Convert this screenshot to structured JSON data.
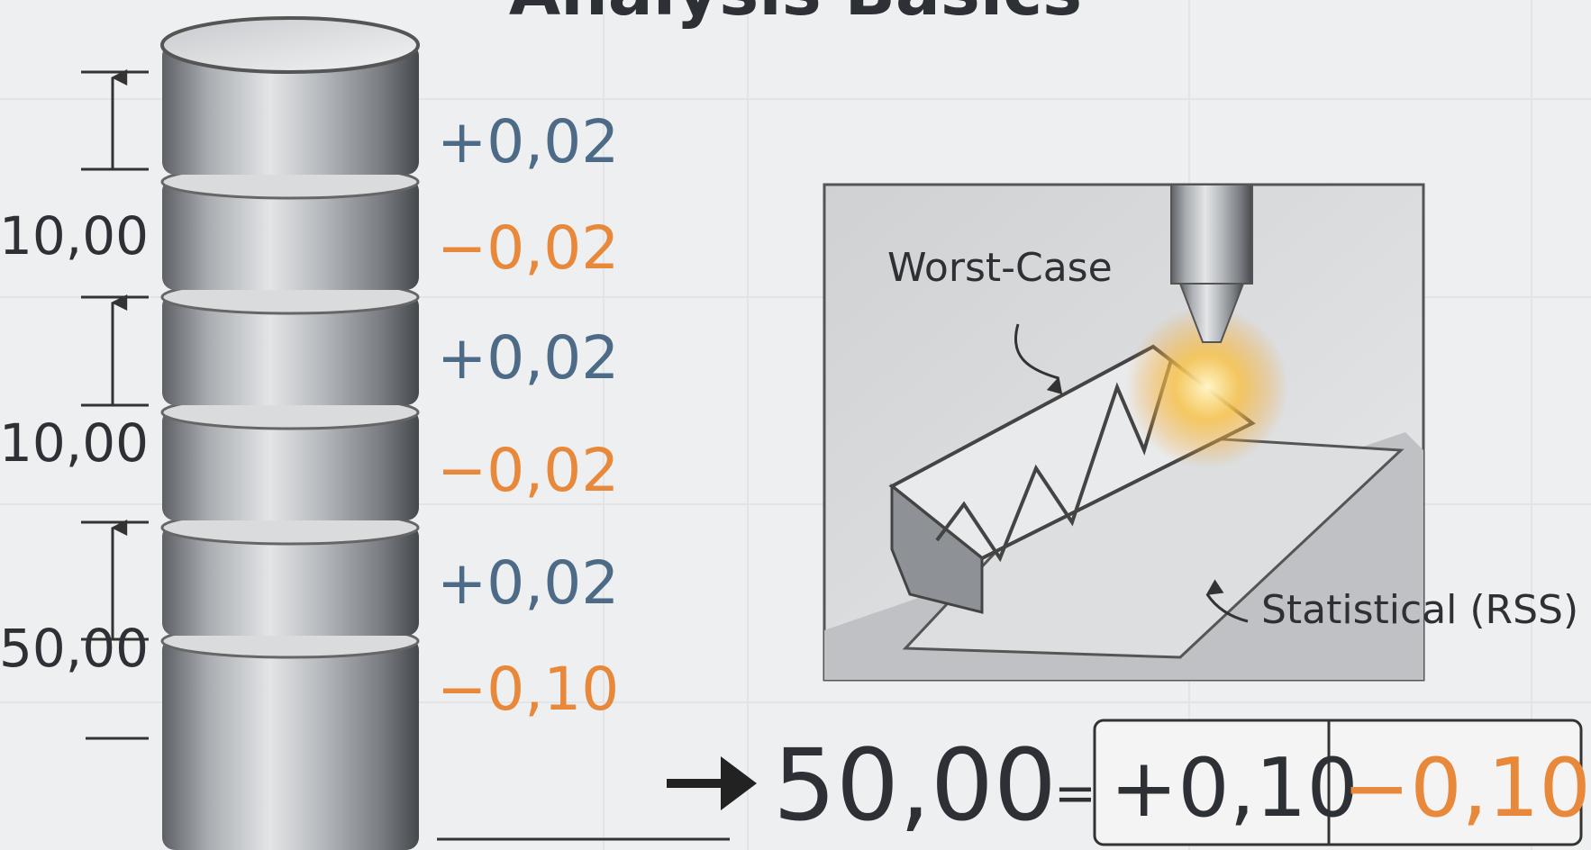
{
  "title": "Analysis Basics",
  "stack": {
    "dimensions": [
      "10,00",
      "10,00",
      "50,00"
    ],
    "tolerances": [
      "+0,02",
      "−0,02",
      "+0,02",
      "−0,02",
      "+0,02",
      "−0,10"
    ]
  },
  "diagram": {
    "labels": [
      "Worst-Case",
      "Statistical (RSS)"
    ]
  },
  "result": {
    "nominal": "50,00",
    "equals": "=",
    "plus": "+0,10",
    "minus": "−0,10"
  }
}
